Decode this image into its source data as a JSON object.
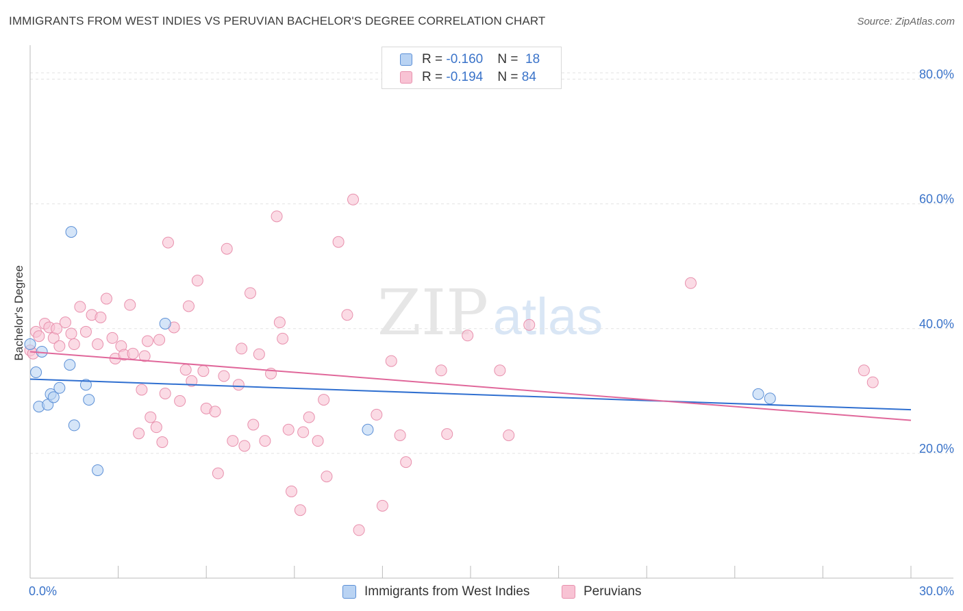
{
  "title": "IMMIGRANTS FROM WEST INDIES VS PERUVIAN BACHELOR'S DEGREE CORRELATION CHART",
  "source": "Source: ZipAtlas.com",
  "watermark": {
    "zip": "ZIP",
    "atlas": "atlas"
  },
  "legend": {
    "rows": [
      {
        "r_label": "R = ",
        "r_value": "-0.160",
        "n_label": "N = ",
        "n_value": "18"
      },
      {
        "r_label": "R = ",
        "r_value": "-0.194",
        "n_label": "N = ",
        "n_value": "84"
      }
    ]
  },
  "colors": {
    "blue_fill": "#b9d3f3",
    "blue_stroke": "#5b8fd6",
    "blue_line": "#2f6fd0",
    "pink_fill": "#f8c3d4",
    "pink_stroke": "#e890ad",
    "pink_line": "#e0679a",
    "axis_label": "#3a73c9",
    "grid": "#e3e3e3"
  },
  "chart_data": {
    "type": "scatter",
    "title": "IMMIGRANTS FROM WEST INDIES VS PERUVIAN BACHELOR'S DEGREE CORRELATION CHART",
    "xlabel": "",
    "ylabel": "Bachelor's Degree",
    "xlim": [
      0,
      30
    ],
    "ylim": [
      0,
      85
    ],
    "x_tick_labels": [
      "0.0%",
      "30.0%"
    ],
    "y_ticks": [
      20,
      40,
      60,
      80
    ],
    "y_tick_labels": [
      "20.0%",
      "40.0%",
      "60.0%",
      "80.0%"
    ],
    "grid": true,
    "legend_placement": "top-center",
    "series": [
      {
        "name": "Immigrants from West Indies",
        "R": -0.16,
        "N": 18,
        "trend": {
          "x": [
            0,
            30
          ],
          "y": [
            31.9,
            27.0
          ]
        },
        "points": [
          [
            0.0,
            37.5
          ],
          [
            0.2,
            33.0
          ],
          [
            0.3,
            27.5
          ],
          [
            0.4,
            36.3
          ],
          [
            0.6,
            27.8
          ],
          [
            0.7,
            29.5
          ],
          [
            0.8,
            29.0
          ],
          [
            1.0,
            30.5
          ],
          [
            1.35,
            34.2
          ],
          [
            1.5,
            24.5
          ],
          [
            1.4,
            55.5
          ],
          [
            1.9,
            31.0
          ],
          [
            2.0,
            28.6
          ],
          [
            2.3,
            17.3
          ],
          [
            4.6,
            40.8
          ],
          [
            11.5,
            23.8
          ],
          [
            24.8,
            29.5
          ],
          [
            25.2,
            28.8
          ]
        ]
      },
      {
        "name": "Peruvians",
        "R": -0.194,
        "N": 84,
        "trend": {
          "x": [
            0,
            30
          ],
          "y": [
            36.3,
            25.3
          ]
        },
        "points": [
          [
            0.0,
            36.5
          ],
          [
            0.2,
            39.5
          ],
          [
            0.3,
            38.8
          ],
          [
            0.5,
            40.8
          ],
          [
            0.65,
            40.2
          ],
          [
            0.8,
            38.5
          ],
          [
            1.0,
            37.2
          ],
          [
            1.2,
            41.0
          ],
          [
            1.4,
            39.2
          ],
          [
            1.5,
            37.5
          ],
          [
            1.7,
            43.5
          ],
          [
            1.9,
            39.5
          ],
          [
            2.1,
            42.2
          ],
          [
            2.3,
            37.5
          ],
          [
            2.4,
            41.8
          ],
          [
            2.6,
            44.8
          ],
          [
            2.8,
            38.5
          ],
          [
            2.9,
            35.2
          ],
          [
            3.1,
            37.2
          ],
          [
            3.2,
            35.8
          ],
          [
            3.4,
            43.8
          ],
          [
            3.5,
            36.0
          ],
          [
            3.7,
            23.2
          ],
          [
            3.8,
            30.2
          ],
          [
            3.9,
            35.6
          ],
          [
            4.0,
            38.0
          ],
          [
            4.1,
            25.8
          ],
          [
            4.3,
            24.2
          ],
          [
            4.4,
            38.2
          ],
          [
            4.5,
            21.8
          ],
          [
            4.6,
            29.6
          ],
          [
            4.7,
            53.8
          ],
          [
            4.9,
            40.2
          ],
          [
            5.1,
            28.4
          ],
          [
            5.3,
            33.4
          ],
          [
            5.4,
            43.6
          ],
          [
            5.5,
            31.6
          ],
          [
            5.7,
            47.7
          ],
          [
            5.9,
            33.2
          ],
          [
            6.0,
            27.2
          ],
          [
            6.3,
            26.7
          ],
          [
            6.4,
            16.8
          ],
          [
            6.6,
            32.4
          ],
          [
            6.7,
            52.8
          ],
          [
            6.9,
            22.0
          ],
          [
            7.1,
            31.0
          ],
          [
            7.2,
            36.8
          ],
          [
            7.3,
            21.2
          ],
          [
            7.5,
            45.7
          ],
          [
            7.6,
            24.6
          ],
          [
            7.8,
            35.9
          ],
          [
            8.0,
            22.0
          ],
          [
            8.2,
            32.8
          ],
          [
            8.4,
            58.0
          ],
          [
            8.5,
            41.0
          ],
          [
            8.6,
            38.4
          ],
          [
            8.8,
            23.8
          ],
          [
            8.9,
            13.9
          ],
          [
            9.2,
            10.9
          ],
          [
            9.3,
            23.4
          ],
          [
            9.5,
            25.8
          ],
          [
            9.8,
            22.0
          ],
          [
            10.0,
            28.6
          ],
          [
            10.1,
            16.3
          ],
          [
            10.5,
            53.9
          ],
          [
            10.8,
            42.2
          ],
          [
            11.0,
            60.7
          ],
          [
            11.2,
            7.7
          ],
          [
            11.8,
            26.2
          ],
          [
            12.0,
            11.6
          ],
          [
            12.3,
            34.8
          ],
          [
            12.6,
            22.9
          ],
          [
            12.8,
            18.6
          ],
          [
            14.0,
            33.3
          ],
          [
            14.2,
            23.1
          ],
          [
            14.9,
            38.9
          ],
          [
            16.0,
            33.3
          ],
          [
            16.3,
            22.9
          ],
          [
            17.0,
            40.6
          ],
          [
            22.5,
            47.3
          ],
          [
            28.4,
            33.3
          ],
          [
            28.7,
            31.4
          ],
          [
            0.1,
            36.0
          ],
          [
            0.9,
            40.0
          ]
        ]
      }
    ]
  },
  "bottom_legend": [
    {
      "label": "Immigrants from West Indies"
    },
    {
      "label": "Peruvians"
    }
  ]
}
